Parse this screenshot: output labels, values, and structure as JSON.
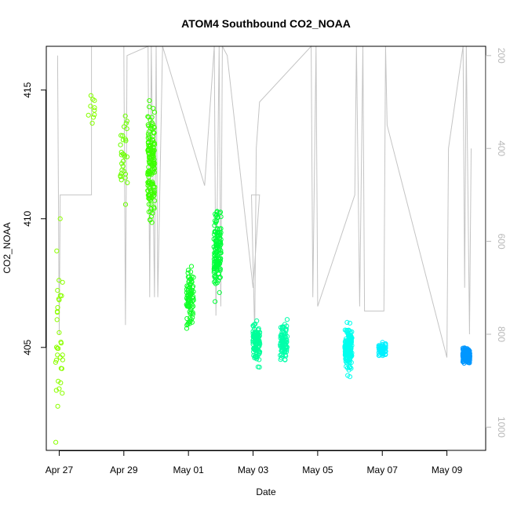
{
  "chart_data": {
    "type": "scatter",
    "title": "ATOM4 Southbound CO2_NOAA",
    "xlabel": "Date",
    "ylabel": "CO2_NOAA",
    "x_ticks": [
      "Apr 27",
      "Apr 29",
      "May 01",
      "May 03",
      "May 05",
      "May 07",
      "May 09"
    ],
    "x_tick_days": [
      0,
      2,
      4,
      6,
      8,
      10,
      12
    ],
    "x_range_days": [
      -0.4,
      13.2
    ],
    "y_ticks": [
      405,
      410,
      415
    ],
    "y_range": [
      401.0,
      416.7
    ],
    "y2_ticks": [
      200,
      400,
      600,
      800,
      1000
    ],
    "y2_range": [
      1050,
      180
    ],
    "y2_color": "#b8b8b8",
    "series": [
      {
        "day": 0.0,
        "center": 406.0,
        "spread": 5.8,
        "n": 34,
        "color": "#8cff00"
      },
      {
        "day": 1.0,
        "center": 414.3,
        "spread": 0.9,
        "n": 10,
        "color": "#86ff00"
      },
      {
        "day": 2.0,
        "center": 412.5,
        "spread": 2.7,
        "n": 30,
        "color": "#6cff00"
      },
      {
        "day": 2.85,
        "center": 412.2,
        "spread": 3.0,
        "n": 160,
        "color": "#3cff00"
      },
      {
        "day": 4.05,
        "center": 407.0,
        "spread": 1.5,
        "n": 90,
        "color": "#10ff28"
      },
      {
        "day": 4.9,
        "center": 408.8,
        "spread": 2.3,
        "n": 140,
        "color": "#00ff38"
      },
      {
        "day": 6.1,
        "center": 405.2,
        "spread": 1.1,
        "n": 110,
        "color": "#00ff9a"
      },
      {
        "day": 6.95,
        "center": 405.2,
        "spread": 1.0,
        "n": 90,
        "color": "#00ffaa"
      },
      {
        "day": 8.95,
        "center": 405.0,
        "spread": 1.2,
        "n": 160,
        "color": "#00ffee"
      },
      {
        "day": 10.0,
        "center": 404.9,
        "spread": 0.4,
        "n": 60,
        "color": "#00f0ff"
      },
      {
        "day": 12.6,
        "center": 404.7,
        "spread": 0.4,
        "n": 180,
        "color": "#0097ff"
      }
    ],
    "altitude_track": [
      [
        -0.05,
        200
      ],
      [
        0.0,
        800
      ],
      [
        0.03,
        500
      ],
      [
        1.0,
        500
      ],
      [
        1.0,
        180
      ],
      [
        2.0,
        180
      ],
      [
        2.05,
        780
      ],
      [
        2.1,
        200
      ],
      [
        2.75,
        180
      ],
      [
        2.8,
        720
      ],
      [
        2.85,
        180
      ],
      [
        2.95,
        720
      ],
      [
        3.0,
        180
      ],
      [
        3.05,
        720
      ],
      [
        3.2,
        180
      ],
      [
        4.5,
        480
      ],
      [
        4.8,
        180
      ],
      [
        4.85,
        760
      ],
      [
        4.95,
        180
      ],
      [
        5.0,
        740
      ],
      [
        5.05,
        180
      ],
      [
        5.2,
        200
      ],
      [
        6.0,
        700
      ],
      [
        6.2,
        500
      ],
      [
        5.95,
        500
      ],
      [
        6.05,
        800
      ],
      [
        6.1,
        400
      ],
      [
        6.2,
        300
      ],
      [
        7.8,
        180
      ],
      [
        7.85,
        720
      ],
      [
        7.95,
        180
      ],
      [
        8.0,
        740
      ],
      [
        9.15,
        500
      ],
      [
        9.2,
        180
      ],
      [
        9.3,
        740
      ],
      [
        9.4,
        180
      ],
      [
        9.45,
        750
      ],
      [
        10.05,
        750
      ],
      [
        10.1,
        180
      ],
      [
        10.15,
        350
      ],
      [
        12.0,
        850
      ],
      [
        12.05,
        400
      ],
      [
        12.5,
        180
      ],
      [
        12.55,
        700
      ],
      [
        12.6,
        180
      ],
      [
        12.7,
        800
      ],
      [
        12.75,
        400
      ]
    ]
  }
}
